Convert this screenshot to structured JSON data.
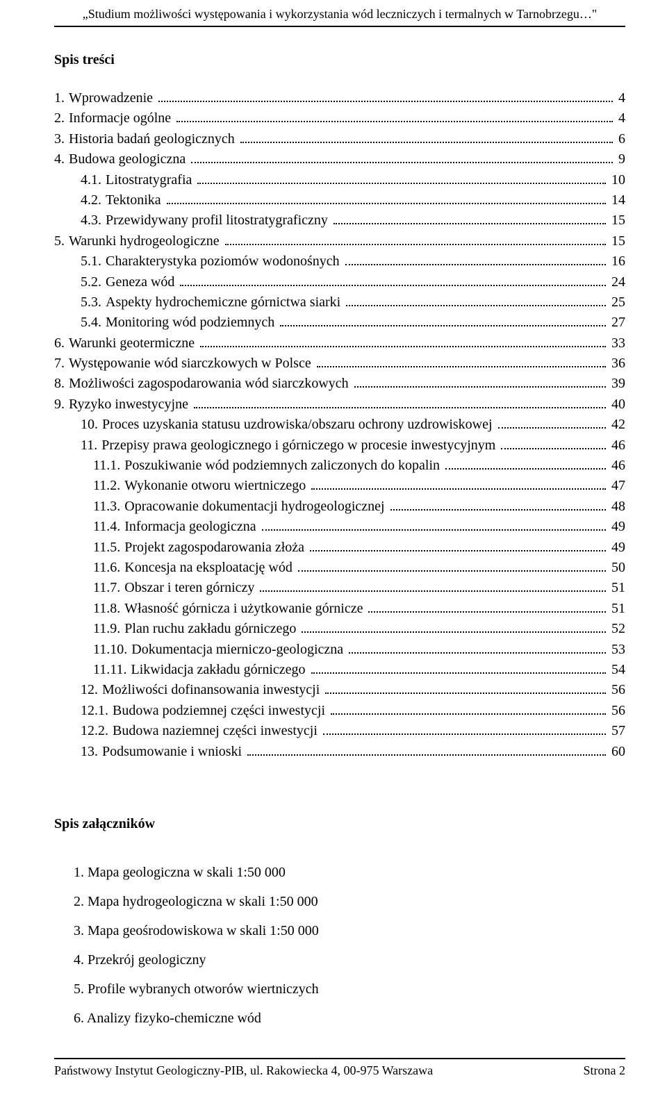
{
  "header": {
    "running_title": "„Studium możliwości występowania i wykorzystania wód leczniczych i termalnych w Tarnobrzegu…\""
  },
  "toc_heading": "Spis treści",
  "toc": [
    {
      "num": "1.",
      "title": "Wprowadzenie",
      "page": "4",
      "indent": 0
    },
    {
      "num": "2.",
      "title": "Informacje ogólne",
      "page": "4",
      "indent": 0
    },
    {
      "num": "3.",
      "title": "Historia badań geologicznych",
      "page": "6",
      "indent": 0
    },
    {
      "num": "4.",
      "title": "Budowa geologiczna",
      "page": "9",
      "indent": 0
    },
    {
      "num": "4.1.",
      "title": "Litostratygrafia",
      "page": "10",
      "indent": 1
    },
    {
      "num": "4.2.",
      "title": "Tektonika",
      "page": "14",
      "indent": 1
    },
    {
      "num": "4.3.",
      "title": "Przewidywany profil litostratygraficzny",
      "page": "15",
      "indent": 1
    },
    {
      "num": "5.",
      "title": "Warunki hydrogeologiczne",
      "page": "15",
      "indent": 0
    },
    {
      "num": "5.1.",
      "title": "Charakterystyka poziomów wodonośnych",
      "page": "16",
      "indent": 1
    },
    {
      "num": "5.2.",
      "title": "Geneza wód",
      "page": "24",
      "indent": 1
    },
    {
      "num": "5.3.",
      "title": "Aspekty hydrochemiczne górnictwa siarki",
      "page": "25",
      "indent": 1
    },
    {
      "num": "5.4.",
      "title": "Monitoring wód podziemnych",
      "page": "27",
      "indent": 1
    },
    {
      "num": "6.",
      "title": "Warunki geotermiczne",
      "page": "33",
      "indent": 0
    },
    {
      "num": "7.",
      "title": "Występowanie wód siarczkowych w Polsce",
      "page": "36",
      "indent": 0
    },
    {
      "num": "8.",
      "title": "Możliwości zagospodarowania wód siarczkowych",
      "page": "39",
      "indent": 0
    },
    {
      "num": "9.",
      "title": "Ryzyko inwestycyjne",
      "page": "40",
      "indent": 0
    },
    {
      "num": "10.",
      "title": "Proces uzyskania statusu uzdrowiska/obszaru ochrony uzdrowiskowej",
      "page": "42",
      "indent": 1
    },
    {
      "num": "11.",
      "title": "Przepisy prawa geologicznego i górniczego w procesie inwestycyjnym",
      "page": "46",
      "indent": 1
    },
    {
      "num": "11.1.",
      "title": "Poszukiwanie wód podziemnych zaliczonych do kopalin",
      "page": "46",
      "indent": 2
    },
    {
      "num": "11.2.",
      "title": "Wykonanie otworu wiertniczego",
      "page": "47",
      "indent": 2
    },
    {
      "num": "11.3.",
      "title": "Opracowanie dokumentacji hydrogeologicznej",
      "page": "48",
      "indent": 2
    },
    {
      "num": "11.4.",
      "title": "Informacja geologiczna",
      "page": "49",
      "indent": 2
    },
    {
      "num": "11.5.",
      "title": "Projekt zagospodarowania złoża",
      "page": "49",
      "indent": 2
    },
    {
      "num": "11.6.",
      "title": "Koncesja na eksploatację wód",
      "page": "50",
      "indent": 2
    },
    {
      "num": "11.7.",
      "title": "Obszar i teren górniczy",
      "page": "51",
      "indent": 2
    },
    {
      "num": "11.8.",
      "title": "Własność górnicza i użytkowanie górnicze",
      "page": "51",
      "indent": 2
    },
    {
      "num": "11.9.",
      "title": "Plan ruchu zakładu górniczego",
      "page": "52",
      "indent": 2
    },
    {
      "num": "11.10.",
      "title": "Dokumentacja mierniczo-geologiczna",
      "page": "53",
      "indent": 2
    },
    {
      "num": "11.11.",
      "title": "Likwidacja zakładu górniczego",
      "page": "54",
      "indent": 2
    },
    {
      "num": "12.",
      "title": "Możliwości dofinansowania inwestycji",
      "page": "56",
      "indent": 1
    },
    {
      "num": "12.1.",
      "title": "Budowa podziemnej części inwestycji",
      "page": "56",
      "indent": 1
    },
    {
      "num": "12.2.",
      "title": "Budowa naziemnej części inwestycji",
      "page": "57",
      "indent": 1
    },
    {
      "num": "13.",
      "title": "Podsumowanie i wnioski",
      "page": "60",
      "indent": 1
    }
  ],
  "appendix_heading": "Spis załączników",
  "appendix": [
    {
      "num": "1.",
      "title": "Mapa geologiczna w skali 1:50 000"
    },
    {
      "num": "2.",
      "title": "Mapa hydrogeologiczna w skali 1:50 000"
    },
    {
      "num": "3.",
      "title": "Mapa geośrodowiskowa w skali 1:50 000"
    },
    {
      "num": "4.",
      "title": "Przekrój geologiczny"
    },
    {
      "num": "5.",
      "title": "Profile wybranych otworów wiertniczych"
    },
    {
      "num": "6.",
      "title": "Analizy fizyko-chemiczne wód"
    }
  ],
  "footer": {
    "left": "Państwowy Instytut Geologiczny-PIB, ul. Rakowiecka 4, 00-975 Warszawa",
    "right": "Strona 2"
  }
}
